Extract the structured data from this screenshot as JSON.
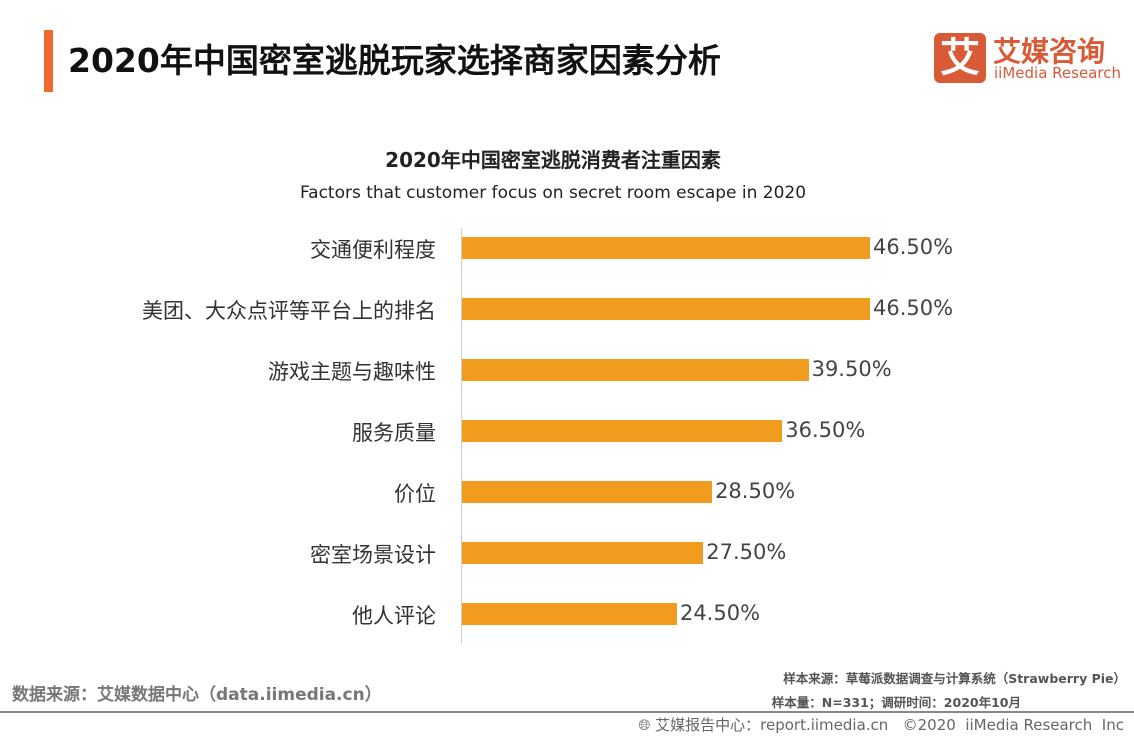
{
  "header": {
    "title": "2020年中国密室逃脱玩家选择商家因素分析",
    "accent_color": "#ef6a2f"
  },
  "logo": {
    "glyph": "艾",
    "cn": "艾媒咨询",
    "en": "iiMedia Research",
    "color": "#d85a36"
  },
  "chart_data": {
    "type": "bar",
    "orientation": "horizontal",
    "title": "2020年中国密室逃脱消费者注重因素",
    "subtitle": "Factors that customer focus on secret room escape in 2020",
    "categories": [
      "交通便利程度",
      "美团、大众点评等平台上的排名",
      "游戏主题与趣味性",
      "服务质量",
      "价位",
      "密室场景设计",
      "他人评论"
    ],
    "values": [
      46.5,
      46.5,
      39.5,
      36.5,
      28.5,
      27.5,
      24.5
    ],
    "labels": [
      "46.50%",
      "46.50%",
      "39.50%",
      "36.50%",
      "28.50%",
      "27.50%",
      "24.50%"
    ],
    "unit": "%",
    "bar_color": "#f19c1f",
    "grid": false
  },
  "footer": {
    "source": "数据来源：艾媒数据中心（data.iimedia.cn）",
    "sample_source": "样本来源：草莓派数据调查与计算系统（Strawberry Pie）",
    "sample_size": "样本量：N=331；调研时间：2020年10月",
    "copyright": "艾媒报告中心：report.iimedia.cn   ©2020  iiMedia Research  Inc",
    "icon": "globe-icon"
  }
}
